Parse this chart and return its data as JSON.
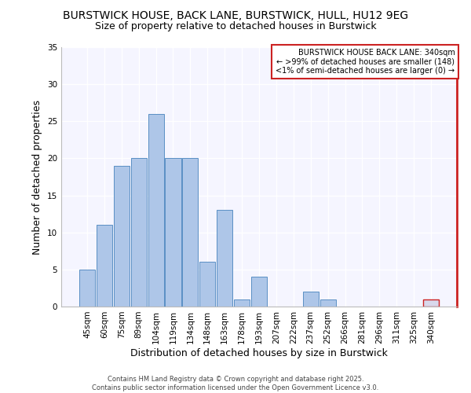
{
  "title_line1": "BURSTWICK HOUSE, BACK LANE, BURSTWICK, HULL, HU12 9EG",
  "title_line2": "Size of property relative to detached houses in Burstwick",
  "xlabel": "Distribution of detached houses by size in Burstwick",
  "ylabel": "Number of detached properties",
  "categories": [
    "45sqm",
    "60sqm",
    "75sqm",
    "89sqm",
    "104sqm",
    "119sqm",
    "134sqm",
    "148sqm",
    "163sqm",
    "178sqm",
    "193sqm",
    "207sqm",
    "222sqm",
    "237sqm",
    "252sqm",
    "266sqm",
    "281sqm",
    "296sqm",
    "311sqm",
    "325sqm",
    "340sqm"
  ],
  "values": [
    5,
    11,
    19,
    20,
    26,
    20,
    20,
    6,
    13,
    1,
    4,
    0,
    0,
    2,
    1,
    0,
    0,
    0,
    0,
    0,
    1
  ],
  "bar_color": "#aec6e8",
  "highlight_color": "#d8d8ec",
  "bar_edge_color": "#5a8fc4",
  "highlight_edge_color": "#cc2222",
  "highlight_index": 20,
  "ylim": [
    0,
    35
  ],
  "yticks": [
    0,
    5,
    10,
    15,
    20,
    25,
    30,
    35
  ],
  "annotation_title": "BURSTWICK HOUSE BACK LANE: 340sqm",
  "annotation_line2": "← >99% of detached houses are smaller (148)",
  "annotation_line3": "<1% of semi-detached houses are larger (0) →",
  "annotation_box_color": "#ffffff",
  "annotation_border_color": "#cc2222",
  "footer": "Contains HM Land Registry data © Crown copyright and database right 2025.\nContains public sector information licensed under the Open Government Licence v3.0.",
  "background_color": "#ffffff",
  "plot_bg_color": "#f5f5ff",
  "grid_color": "#ffffff",
  "title_fontsize": 10,
  "subtitle_fontsize": 9,
  "axis_label_fontsize": 9,
  "tick_fontsize": 7.5,
  "annotation_fontsize": 7,
  "footer_fontsize": 6
}
